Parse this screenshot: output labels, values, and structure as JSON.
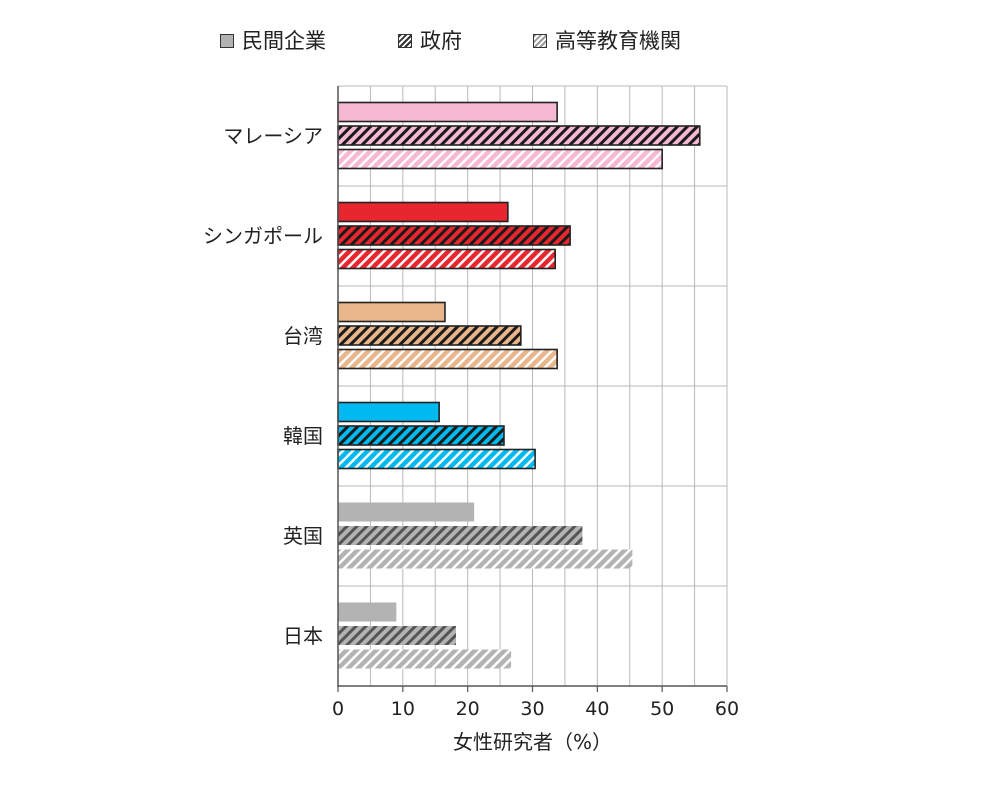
{
  "legend": {
    "items": [
      {
        "label": "民間企業",
        "style": "solid"
      },
      {
        "label": "政府",
        "style": "dense-hatch"
      },
      {
        "label": "高等教育機関",
        "style": "light-hatch"
      }
    ]
  },
  "chart_data": {
    "type": "bar",
    "orientation": "horizontal",
    "categories": [
      "マレーシア",
      "シンガポール",
      "台湾",
      "韓国",
      "英国",
      "日本"
    ],
    "category_colors": [
      "#f6b8d2",
      "#e8262e",
      "#e8b68a",
      "#00b9ef",
      "#b3b3b3",
      "#b3b3b3"
    ],
    "series": [
      {
        "name": "民間企業",
        "style": "solid",
        "values": [
          33.8,
          26.2,
          16.5,
          15.6,
          21.0,
          9.0
        ]
      },
      {
        "name": "政府",
        "style": "dense-hatch",
        "values": [
          55.8,
          35.8,
          28.2,
          25.6,
          37.7,
          18.2
        ]
      },
      {
        "name": "高等教育機関",
        "style": "light-hatch",
        "values": [
          50.0,
          33.5,
          33.8,
          30.4,
          45.4,
          26.7
        ]
      }
    ],
    "xlim": [
      0,
      60
    ],
    "xticks": [
      0,
      10,
      20,
      30,
      40,
      50,
      60
    ],
    "xlabel": "女性研究者（%）",
    "ylabel": "",
    "title": "",
    "grid": true,
    "legend_position": "top"
  }
}
